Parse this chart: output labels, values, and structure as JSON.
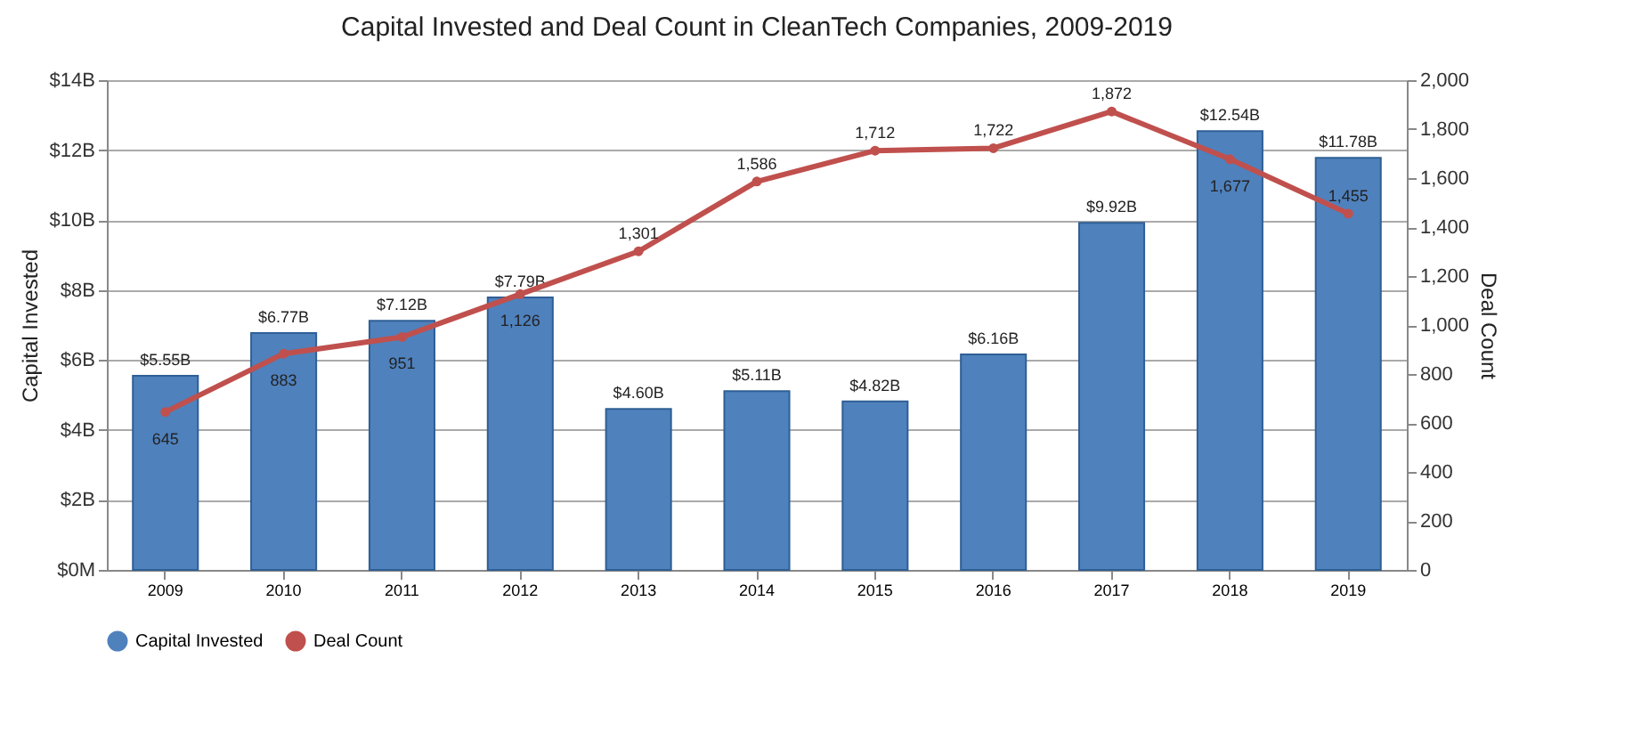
{
  "chart_data": {
    "type": "bar",
    "title": "Capital Invested and Deal Count in CleanTech Companies, 2009-2019",
    "ylabel": "Capital Invested",
    "y2label": "Deal Count",
    "categories": [
      "2009",
      "2010",
      "2011",
      "2012",
      "2013",
      "2014",
      "2015",
      "2016",
      "2017",
      "2018",
      "2019"
    ],
    "series": [
      {
        "name": "Capital Invested",
        "color": "#4f81bd",
        "values": [
          5.55,
          6.77,
          7.12,
          7.79,
          4.6,
          5.11,
          4.82,
          6.16,
          9.92,
          12.54,
          11.78
        ],
        "value_labels": [
          "$5.55B",
          "$6.77B",
          "$7.12B",
          "$7.79B",
          "$4.60B",
          "$5.11B",
          "$4.82B",
          "$6.16B",
          "$9.92B",
          "$12.54B",
          "$11.78B"
        ]
      },
      {
        "name": "Deal Count",
        "type": "line",
        "axis": "y2",
        "color": "#c0504d",
        "values": [
          645,
          883,
          951,
          1126,
          1301,
          1586,
          1712,
          1722,
          1872,
          1677,
          1455
        ],
        "value_labels": [
          "645",
          "883",
          "951",
          "1,126",
          "1,301",
          "1,586",
          "1,712",
          "1,722",
          "1,872",
          "1,677",
          "1,455"
        ]
      }
    ],
    "ylim": [
      0,
      14
    ],
    "yticks": [
      {
        "value": 0,
        "label": "$0M"
      },
      {
        "value": 2,
        "label": "$2B"
      },
      {
        "value": 4,
        "label": "$4B"
      },
      {
        "value": 6,
        "label": "$6B"
      },
      {
        "value": 8,
        "label": "$8B"
      },
      {
        "value": 10,
        "label": "$10B"
      },
      {
        "value": 12,
        "label": "$12B"
      },
      {
        "value": 14,
        "label": "$14B"
      }
    ],
    "y2lim": [
      0,
      2000
    ],
    "y2ticks": [
      0,
      200,
      400,
      600,
      800,
      {
        "value": 1000,
        "label": "1,000"
      },
      {
        "value": 1200,
        "label": "1,200"
      },
      {
        "value": 1400,
        "label": "1,400"
      },
      {
        "value": 1600,
        "label": "1,600"
      },
      {
        "value": 1800,
        "label": "1,800"
      },
      {
        "value": 2000,
        "label": "2,000"
      }
    ],
    "grid": "y",
    "legend": "bottom",
    "marker": "circle",
    "line_style": "solid"
  }
}
